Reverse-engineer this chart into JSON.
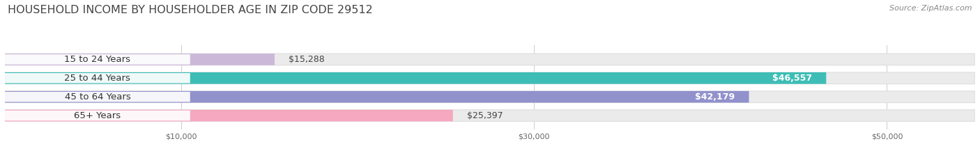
{
  "title": "HOUSEHOLD INCOME BY HOUSEHOLDER AGE IN ZIP CODE 29512",
  "source": "Source: ZipAtlas.com",
  "categories": [
    "15 to 24 Years",
    "25 to 44 Years",
    "45 to 64 Years",
    "65+ Years"
  ],
  "values": [
    15288,
    46557,
    42179,
    25397
  ],
  "value_labels": [
    "$15,288",
    "$46,557",
    "$42,179",
    "$25,397"
  ],
  "bar_colors": [
    "#cbb8d9",
    "#3dbdb5",
    "#9191cc",
    "#f5a8bf"
  ],
  "track_color": "#ebebeb",
  "track_border_color": "#dddddd",
  "background_color": "#ffffff",
  "xmax": 55000,
  "xticks": [
    10000,
    30000,
    50000
  ],
  "xtick_labels": [
    "$10,000",
    "$30,000",
    "$50,000"
  ],
  "title_fontsize": 11.5,
  "source_fontsize": 8,
  "label_fontsize": 9.5,
  "value_fontsize": 9,
  "bar_height": 0.62,
  "value_inside_threshold": 35000
}
